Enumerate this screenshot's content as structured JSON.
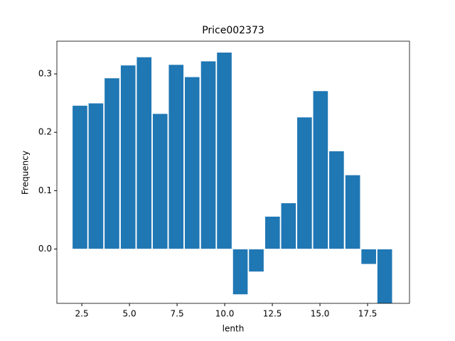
{
  "chart_data": {
    "type": "bar",
    "title": "Price002373",
    "xlabel": "lenth",
    "ylabel": "Frequency",
    "x": [
      2.0,
      2.84,
      3.68,
      4.53,
      5.37,
      6.21,
      7.05,
      7.89,
      8.74,
      9.58,
      10.42,
      11.26,
      12.11,
      12.95,
      13.79,
      14.63,
      15.47,
      16.32,
      17.16,
      18.0
    ],
    "values": [
      0.246,
      0.25,
      0.293,
      0.315,
      0.329,
      0.232,
      0.316,
      0.295,
      0.322,
      0.337,
      -0.078,
      -0.039,
      0.056,
      0.079,
      0.226,
      0.271,
      0.168,
      0.127,
      -0.026,
      -0.095
    ],
    "bar_width": 0.8,
    "color": "#1f77b4",
    "xlim": [
      1.19,
      19.7
    ],
    "ylim": [
      -0.093,
      0.356
    ],
    "xticks": [
      {
        "value": 2.5,
        "label": "2.5"
      },
      {
        "value": 5,
        "label": "5.0"
      },
      {
        "value": 7.5,
        "label": "7.5"
      },
      {
        "value": 10,
        "label": "10.0"
      },
      {
        "value": 12.5,
        "label": "12.5"
      },
      {
        "value": 15,
        "label": "15.0"
      },
      {
        "value": 17.5,
        "label": "17.5"
      }
    ],
    "yticks": [
      {
        "value": 0,
        "label": "0.0"
      },
      0.1,
      0.2,
      0.3
    ],
    "grid": false
  }
}
